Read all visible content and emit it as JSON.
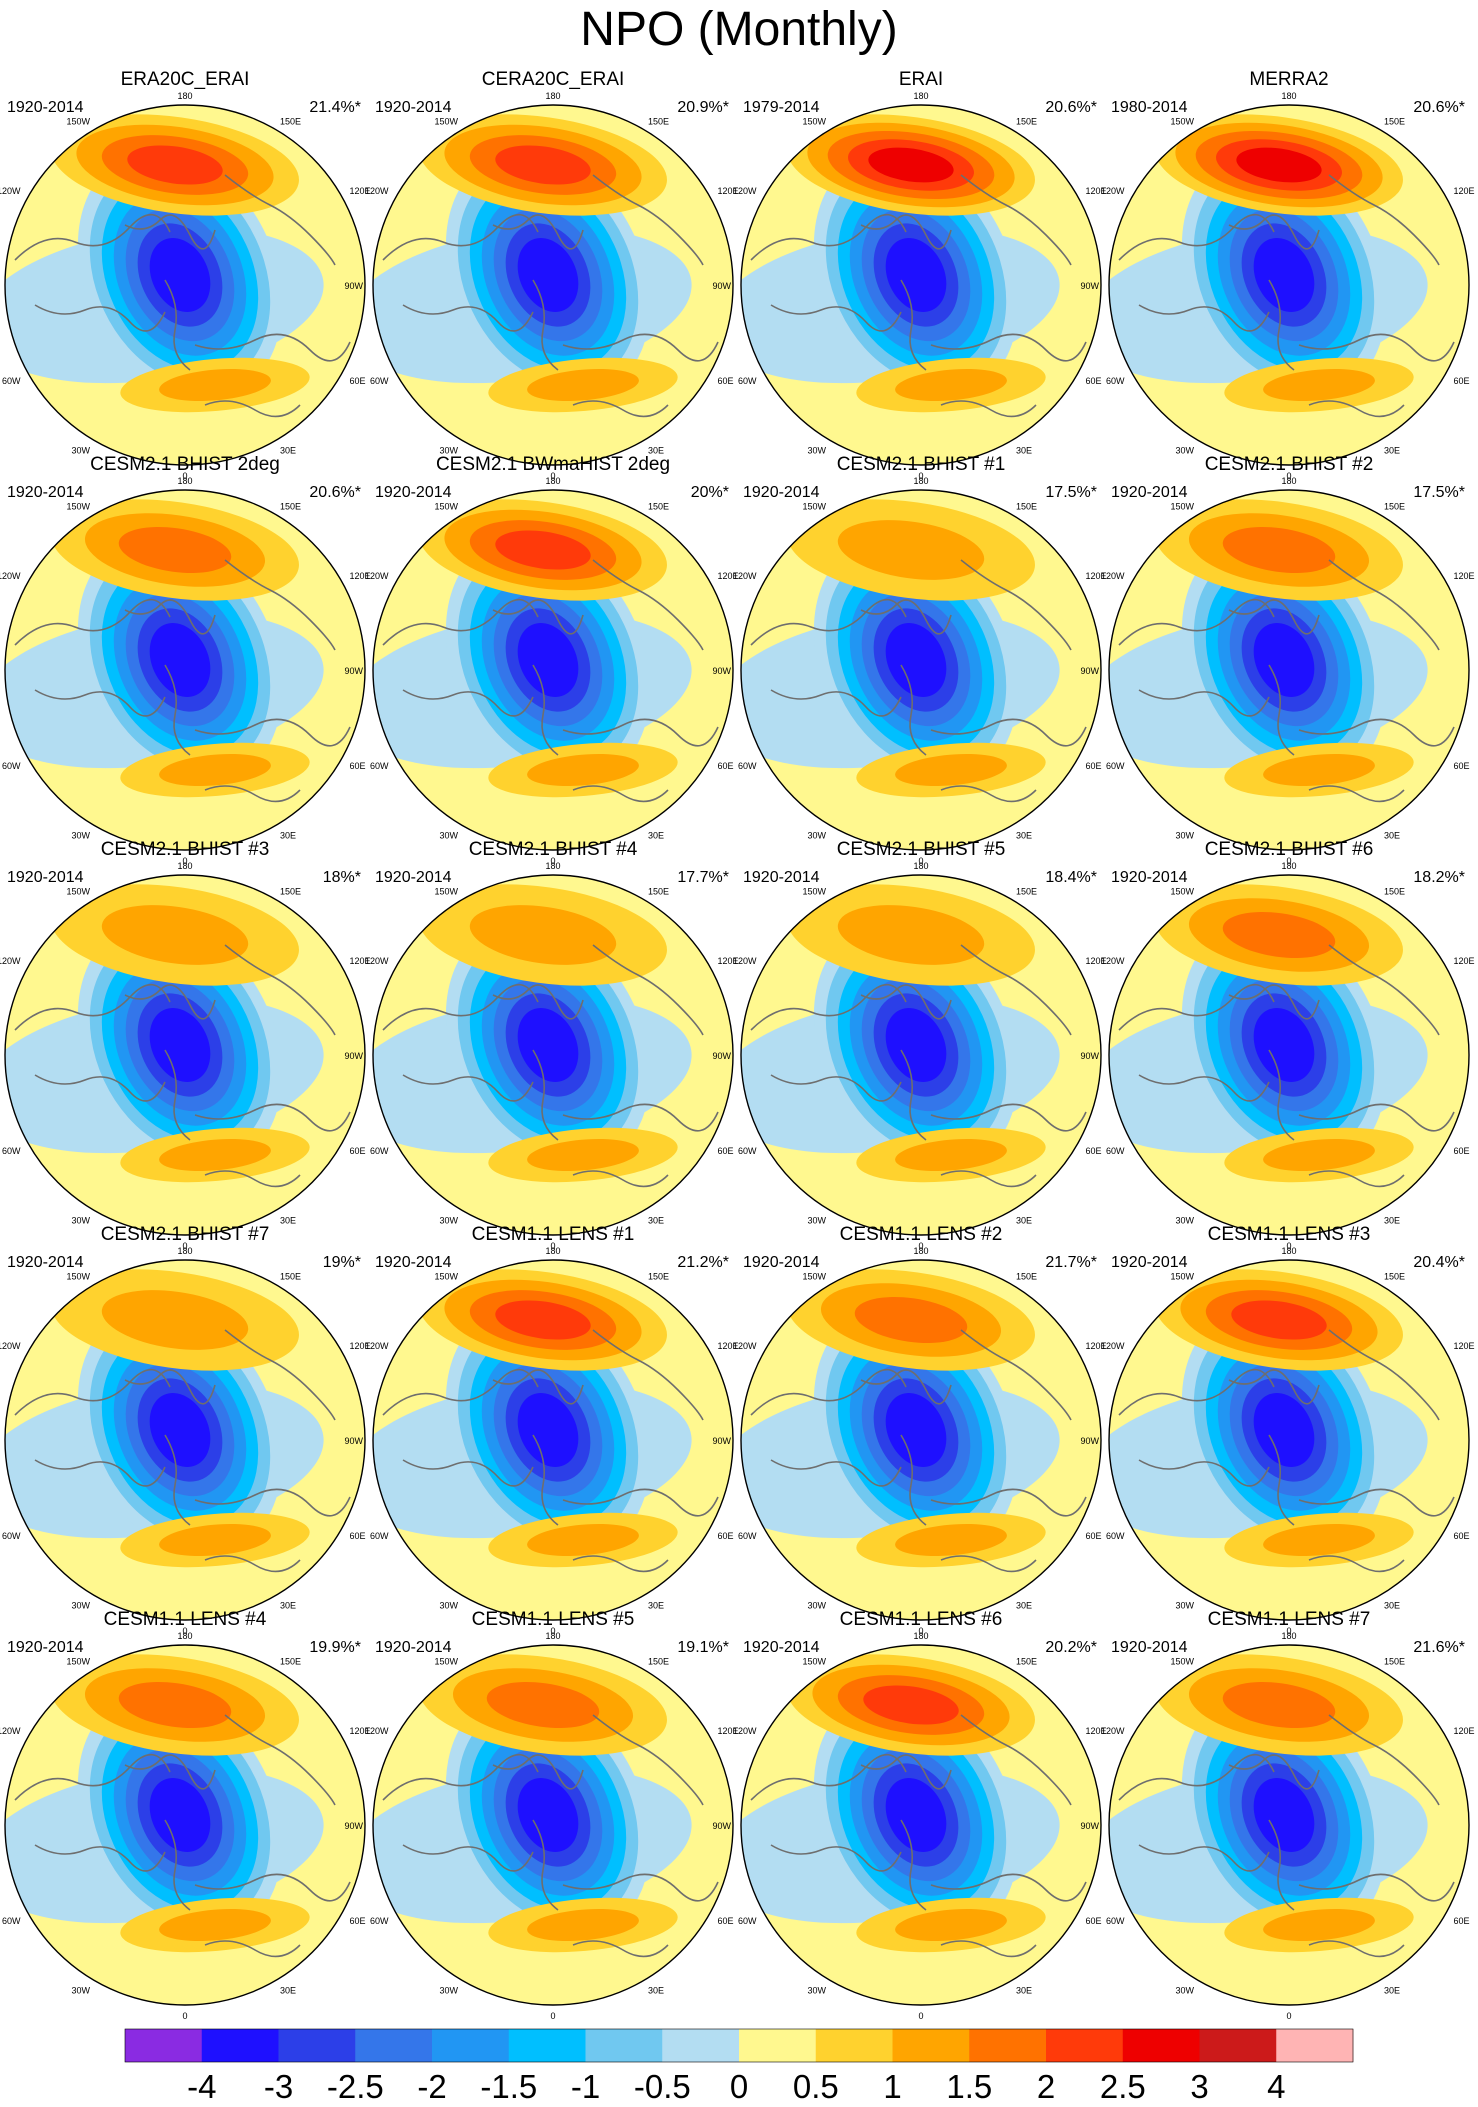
{
  "title": "NPO (Monthly)",
  "chart_data": {
    "type": "heatmap",
    "projection": "north polar stereographic",
    "field": "NPO regression pattern (monthly)",
    "lon_labels": [
      "180",
      "150E",
      "120E",
      "90E",
      "60E",
      "30E",
      "0",
      "30W",
      "60W",
      "90W",
      "120W",
      "150W"
    ],
    "colorbar": {
      "labels": [
        "-4",
        "-3",
        "-2.5",
        "-2",
        "-1.5",
        "-1",
        "-0.5",
        "0",
        "0.5",
        "1",
        "1.5",
        "2",
        "2.5",
        "3",
        "4"
      ],
      "colors": [
        "#8a2be2",
        "#1e10ff",
        "#2c3fe8",
        "#3476ea",
        "#2196f3",
        "#00bfff",
        "#70c8f0",
        "#b3ddf2",
        "#fff88f",
        "#ffd22e",
        "#ffa500",
        "#ff7200",
        "#ff3a0a",
        "#ee0000",
        "#cc1a1a",
        "#ffb4b4"
      ]
    },
    "panels": [
      {
        "title": "ERA20C_ERAI",
        "period": "1920-2014",
        "variance": "21.4%*",
        "pos_max": 2.0,
        "neg_min": -3.2
      },
      {
        "title": "CERA20C_ERAI",
        "period": "1920-2014",
        "variance": "20.9%*",
        "pos_max": 2.3,
        "neg_min": -3.2
      },
      {
        "title": "ERAI",
        "period": "1979-2014",
        "variance": "20.6%*",
        "pos_max": 2.5,
        "neg_min": -3.3
      },
      {
        "title": "MERRA2",
        "period": "1980-2014",
        "variance": "20.6%*",
        "pos_max": 2.5,
        "neg_min": -3.3
      },
      {
        "title": "CESM2.1 BHIST 2deg",
        "period": "1920-2014",
        "variance": "20.6%*",
        "pos_max": 1.6,
        "neg_min": -3.6
      },
      {
        "title": "CESM2.1 BWmaHIST 2deg",
        "period": "1920-2014",
        "variance": "20%*",
        "pos_max": 2.3,
        "neg_min": -3.6
      },
      {
        "title": "CESM2.1 BHIST #1",
        "period": "1920-2014",
        "variance": "17.5%*",
        "pos_max": 1.4,
        "neg_min": -3.6
      },
      {
        "title": "CESM2.1 BHIST #2",
        "period": "1920-2014",
        "variance": "17.5%*",
        "pos_max": 1.6,
        "neg_min": -3.6
      },
      {
        "title": "CESM2.1 BHIST #3",
        "period": "1920-2014",
        "variance": "18%*",
        "pos_max": 1.4,
        "neg_min": -3.3
      },
      {
        "title": "CESM2.1 BHIST #4",
        "period": "1920-2014",
        "variance": "17.7%*",
        "pos_max": 1.3,
        "neg_min": -3.6
      },
      {
        "title": "CESM2.1 BHIST #5",
        "period": "1920-2014",
        "variance": "18.4%*",
        "pos_max": 1.4,
        "neg_min": -3.6
      },
      {
        "title": "CESM2.1 BHIST #6",
        "period": "1920-2014",
        "variance": "18.2%*",
        "pos_max": 1.6,
        "neg_min": -3.3
      },
      {
        "title": "CESM2.1 BHIST #7",
        "period": "1920-2014",
        "variance": "19%*",
        "pos_max": 1.4,
        "neg_min": -3.3
      },
      {
        "title": "CESM1.1 LENS #1",
        "period": "1920-2014",
        "variance": "21.2%*",
        "pos_max": 2.3,
        "neg_min": -3.6
      },
      {
        "title": "CESM1.1 LENS #2",
        "period": "1920-2014",
        "variance": "21.7%*",
        "pos_max": 1.6,
        "neg_min": -3.6
      },
      {
        "title": "CESM1.1 LENS #3",
        "period": "1920-2014",
        "variance": "20.4%*",
        "pos_max": 2.3,
        "neg_min": -3.6
      },
      {
        "title": "CESM1.1 LENS #4",
        "period": "1920-2014",
        "variance": "19.9%*",
        "pos_max": 1.6,
        "neg_min": -3.6
      },
      {
        "title": "CESM1.1 LENS #5",
        "period": "1920-2014",
        "variance": "19.1%*",
        "pos_max": 1.6,
        "neg_min": -3.6
      },
      {
        "title": "CESM1.1 LENS #6",
        "period": "1920-2014",
        "variance": "20.2%*",
        "pos_max": 2.3,
        "neg_min": -3.6
      },
      {
        "title": "CESM1.1 LENS #7",
        "period": "1920-2014",
        "variance": "21.6%*",
        "pos_max": 1.6,
        "neg_min": -3.6
      }
    ]
  }
}
